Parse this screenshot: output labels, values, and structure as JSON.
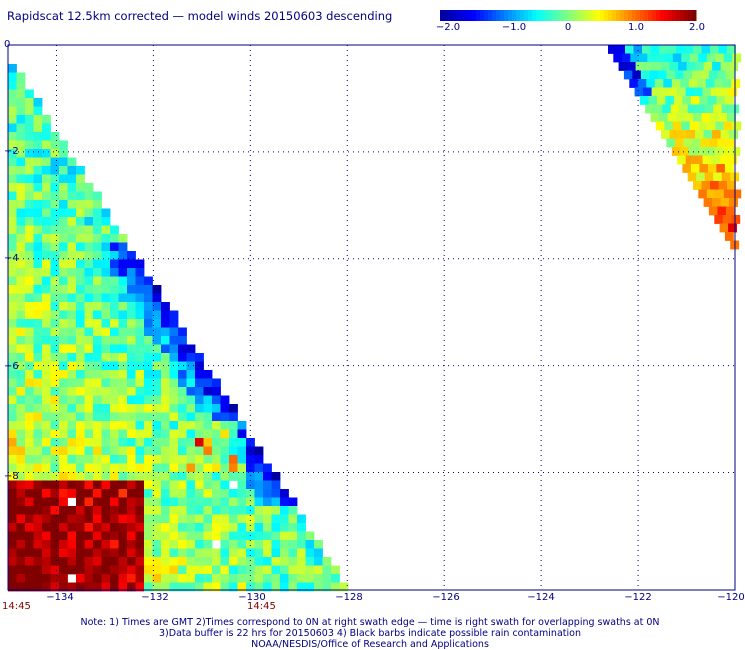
{
  "title": "Rapidscat 12.5km corrected — model winds 20150603 descending",
  "colorbar": {
    "labels": [
      "−2.0",
      "−1.0",
      "0",
      "1.0",
      "2.0"
    ],
    "min": -2.0,
    "max": 2.0,
    "colors": [
      "#0000a0",
      "#0000ff",
      "#0080ff",
      "#00ffff",
      "#80ff80",
      "#ffff00",
      "#ff8000",
      "#ff0000",
      "#800000"
    ]
  },
  "axes": {
    "x_ticks": [
      "−134",
      "−132",
      "−130",
      "−128",
      "−126",
      "−124",
      "−122",
      "−120"
    ],
    "y_ticks": [
      "0",
      "−2",
      "−4",
      "−6",
      "−8"
    ],
    "x_range": [
      -135,
      -120
    ],
    "y_range": [
      -10.2,
      0
    ]
  },
  "time_labels": [
    "14:45",
    "14:45"
  ],
  "notes": [
    "Note: 1) Times are GMT 2)Times correspond to 0N at right swath edge — time is right swath for overlapping swaths at 0N",
    "3)Data buffer is 22 hrs for 20150603 4) Black barbs indicate possible rain contamination",
    "NOAA/NESDIS/Office of Research and Applications"
  ]
}
